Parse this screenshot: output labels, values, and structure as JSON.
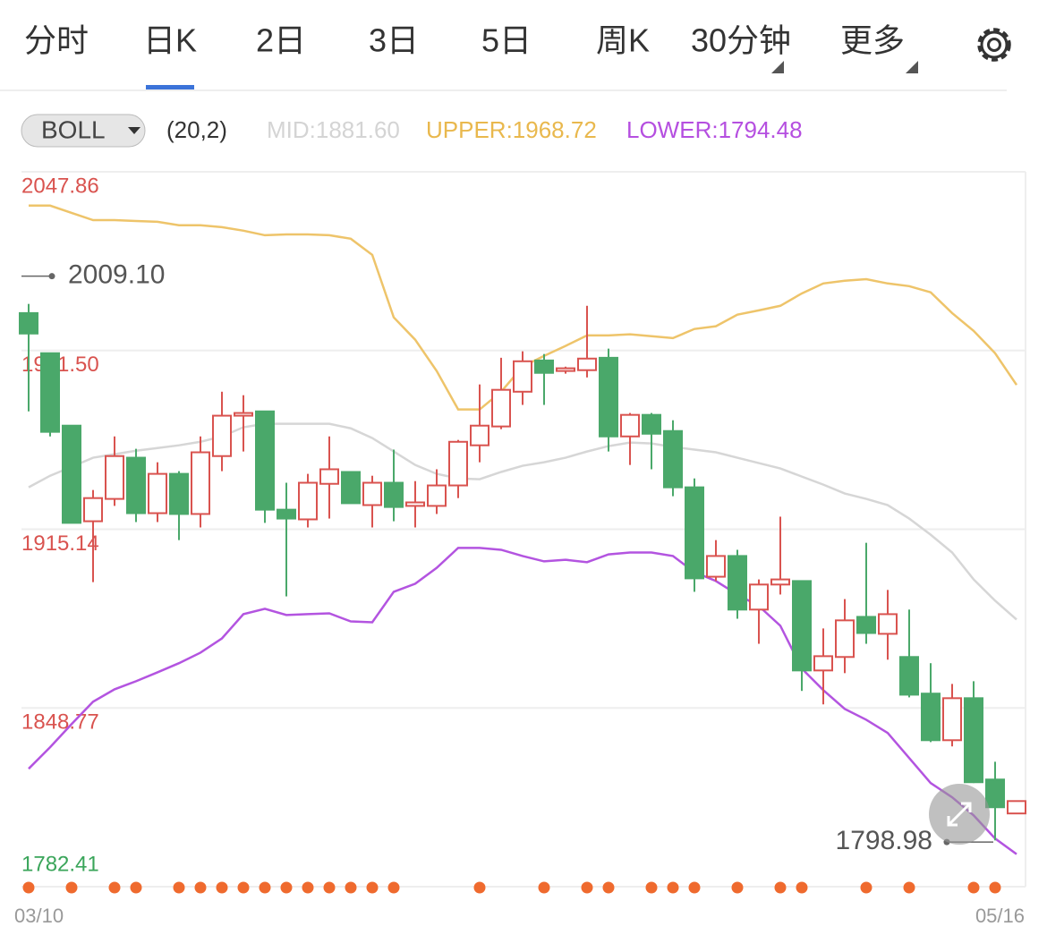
{
  "tabs": [
    "分时",
    "日K",
    "2日",
    "3日",
    "5日",
    "周K",
    "30分钟",
    "更多"
  ],
  "active_tab": 1,
  "indicator": {
    "name": "BOLL",
    "params": "(20,2)",
    "mid": "MID:1881.60",
    "upper": "UPPER:1968.72",
    "lower": "LOWER:1794.48"
  },
  "chart_data": {
    "type": "candlestick",
    "categories": [
      "03/10",
      null,
      null,
      null,
      null,
      null,
      null,
      null,
      null,
      null,
      null,
      null,
      null,
      null,
      null,
      null,
      null,
      null,
      null,
      null,
      null,
      null,
      null,
      null,
      null,
      null,
      null,
      null,
      null,
      null,
      null,
      null,
      null,
      null,
      null,
      null,
      null,
      null,
      null,
      null,
      null,
      null,
      null,
      null,
      null,
      null,
      "05/16"
    ],
    "open": [
      1995.4,
      1980.5,
      1953.6,
      1918.1,
      1926.4,
      1941.7,
      1921.1,
      1935.7,
      1920.8,
      1942.3,
      1957.3,
      1958.9,
      1922.4,
      1918.8,
      1932.0,
      1936.4,
      1924.1,
      1932.4,
      1923.8,
      1923.8,
      1931.4,
      1946.3,
      1953.3,
      1966.2,
      1977.8,
      1973.9,
      1974.2,
      1978.8,
      1949.6,
      1957.6,
      1951.6,
      1930.7,
      1897.5,
      1905.2,
      1885.3,
      1894.6,
      1895.9,
      1862.7,
      1867.7,
      1882.6,
      1876.3,
      1867.7,
      1854.1,
      1836.8,
      1852.4,
      1822.2,
      1809.6
    ],
    "high": [
      1998.8,
      1980.5,
      1953.6,
      1929.7,
      1949.6,
      1945.0,
      1940.0,
      1936.7,
      1949.6,
      1966.2,
      1964.9,
      1958.9,
      1932.4,
      1935.7,
      1949.6,
      1936.4,
      1935.0,
      1944.7,
      1933.0,
      1937.4,
      1948.3,
      1968.9,
      1978.8,
      1981.2,
      1980.2,
      1975.5,
      1998.1,
      1982.2,
      1958.3,
      1958.3,
      1955.6,
      1934.0,
      1911.1,
      1907.5,
      1896.5,
      1919.8,
      1895.9,
      1878.3,
      1889.2,
      1910.1,
      1892.6,
      1885.3,
      1865.4,
      1857.7,
      1858.7,
      1828.8,
      1814.2
    ],
    "low": [
      1958.9,
      1949.6,
      1917.5,
      1895.5,
      1923.8,
      1917.8,
      1917.8,
      1911.1,
      1915.8,
      1936.7,
      1944.0,
      1917.5,
      1890.2,
      1915.8,
      1919.1,
      1924.8,
      1915.8,
      1918.1,
      1915.8,
      1920.8,
      1926.7,
      1940.0,
      1952.3,
      1961.3,
      1961.3,
      1972.9,
      1971.5,
      1944.0,
      1939.0,
      1937.4,
      1927.4,
      1891.9,
      1895.9,
      1881.9,
      1872.6,
      1890.9,
      1855.1,
      1850.1,
      1861.7,
      1872.6,
      1866.7,
      1852.7,
      1836.1,
      1834.5,
      1820.9,
      1799.6,
      1809.6
    ],
    "close": [
      1987.8,
      1951.3,
      1917.5,
      1926.7,
      1942.3,
      1921.1,
      1935.7,
      1920.8,
      1943.7,
      1957.3,
      1958.3,
      1922.4,
      1919.1,
      1932.4,
      1937.4,
      1924.8,
      1932.4,
      1923.4,
      1925.1,
      1931.4,
      1947.6,
      1953.6,
      1966.9,
      1977.5,
      1973.2,
      1974.9,
      1978.5,
      1949.6,
      1957.6,
      1950.6,
      1930.7,
      1896.9,
      1905.2,
      1885.3,
      1894.6,
      1896.5,
      1862.7,
      1868.0,
      1881.3,
      1876.6,
      1883.6,
      1853.7,
      1836.8,
      1852.4,
      1821.2,
      1811.9,
      1814.2
    ],
    "up_color": "#d9534f",
    "down_color": "#4aa86a",
    "bands": {
      "upper": {
        "color": "#eec46a",
        "values": [
          2035.3,
          2035.3,
          2032.6,
          2029.9,
          2029.9,
          2029.6,
          2029.3,
          2028.0,
          2028.0,
          2027.3,
          2026.0,
          2024.3,
          2024.6,
          2024.6,
          2024.3,
          2023.0,
          2017.0,
          1993.8,
          1985.5,
          1973.9,
          1959.6,
          1959.6,
          1966.2,
          1975.5,
          1979.5,
          1983.2,
          1987.1,
          1987.1,
          1987.5,
          1986.8,
          1986.1,
          1989.5,
          1990.5,
          1994.8,
          1996.4,
          1998.1,
          2002.7,
          2006.4,
          2007.4,
          2008.0,
          2006.4,
          2005.4,
          2003.1,
          1995.4,
          1988.8,
          1980.5,
          1968.72
        ]
      },
      "mid": {
        "color": "#d6d6d6",
        "values": [
          1930.7,
          1935.0,
          1938.3,
          1941.7,
          1943.0,
          1944.3,
          1945.3,
          1946.3,
          1947.6,
          1949.6,
          1953.0,
          1954.3,
          1954.3,
          1954.3,
          1954.3,
          1952.6,
          1949.0,
          1944.0,
          1939.0,
          1935.7,
          1934.0,
          1933.7,
          1936.4,
          1938.7,
          1940.0,
          1941.7,
          1944.0,
          1946.0,
          1947.3,
          1947.0,
          1945.7,
          1944.7,
          1943.7,
          1941.7,
          1939.7,
          1937.7,
          1934.7,
          1931.7,
          1928.4,
          1926.4,
          1924.1,
          1919.1,
          1913.1,
          1906.5,
          1896.5,
          1888.6,
          1881.6
        ]
      },
      "lower": {
        "color": "#b354e0",
        "values": [
          1826.2,
          1834.2,
          1842.8,
          1851.1,
          1855.7,
          1858.7,
          1862.0,
          1865.4,
          1869.3,
          1874.6,
          1883.6,
          1885.6,
          1883.3,
          1883.6,
          1883.9,
          1880.9,
          1880.6,
          1891.9,
          1894.9,
          1900.8,
          1908.2,
          1908.2,
          1907.5,
          1905.2,
          1903.2,
          1903.8,
          1902.9,
          1905.8,
          1906.5,
          1906.5,
          1905.2,
          1899.2,
          1895.9,
          1890.9,
          1886.6,
          1879.3,
          1863.4,
          1855.4,
          1848.4,
          1844.4,
          1839.5,
          1830.2,
          1820.9,
          1815.6,
          1808.9,
          1800.3,
          1794.48
        ]
      }
    },
    "event_markers": [
      0,
      2,
      4,
      5,
      7,
      8,
      9,
      10,
      11,
      12,
      13,
      14,
      15,
      16,
      17,
      21,
      24,
      26,
      27,
      29,
      30,
      31,
      33,
      35,
      36,
      39,
      41,
      44,
      45
    ],
    "event_color": "#ef6a2e",
    "annotations": [
      {
        "value": 2009.1,
        "label": "2009.10"
      },
      {
        "value": 1798.98,
        "label": "1798.98"
      }
    ],
    "ylim": [
      1782.41,
      2047.86
    ],
    "yticks": [
      1782.41,
      1848.77,
      1915.14,
      {
        "value": 1981.5,
        "label": "1981.50"
      },
      2047.86
    ],
    "grid": true
  }
}
